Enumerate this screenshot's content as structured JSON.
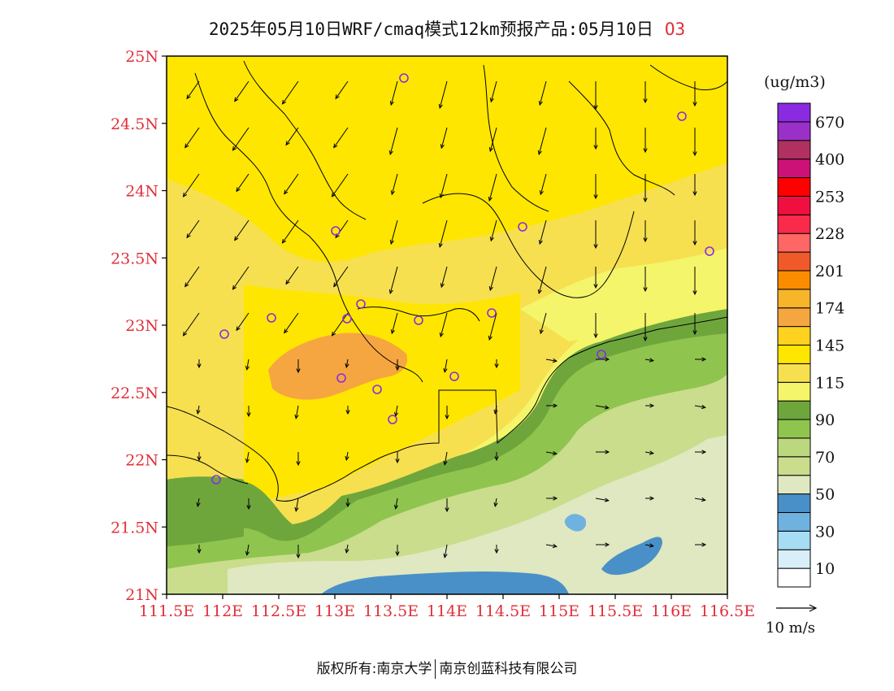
{
  "title": {
    "text": "2025年05月10日WRF/cmaq模式12km预报产品:05月10日",
    "pollutant": "O3"
  },
  "map": {
    "lat_labels": [
      "25N",
      "24.5N",
      "24N",
      "23.5N",
      "23N",
      "22.5N",
      "22N",
      "21.5N",
      "21N"
    ],
    "lon_labels": [
      "111.5E",
      "112E",
      "112.5E",
      "113E",
      "113.5E",
      "114E",
      "114.5E",
      "115E",
      "115.5E",
      "116E",
      "116.5E"
    ],
    "lat_range": [
      21,
      25
    ],
    "lon_range": [
      111.5,
      116.5
    ],
    "axis_label_color": "#e0303a"
  },
  "legend": {
    "unit": "(ug/m3)",
    "colors": [
      "#ffffff",
      "#d8eef8",
      "#a6dcf4",
      "#6fb2e0",
      "#4a90c8",
      "#dfe8c0",
      "#c9dd8c",
      "#bcd87e",
      "#8fc44e",
      "#6ea63c",
      "#f4f56a",
      "#f6e050",
      "#ffe600",
      "#ffd21f",
      "#f6a640",
      "#f7b52a",
      "#fb8c00",
      "#f05a2a",
      "#ff6666",
      "#fa2a4a",
      "#f01040",
      "#ff0000",
      "#cc1177",
      "#b03060",
      "#9a30c8",
      "#8a2be2"
    ],
    "tick_labels": [
      "10",
      "30",
      "50",
      "70",
      "90",
      "115",
      "145",
      "174",
      "201",
      "228",
      "253",
      "400",
      "670"
    ]
  },
  "wind": {
    "reference_label": "10 m/s"
  },
  "footer": {
    "left": "版权所有:南京大学",
    "right": "南京创蓝科技有限公司"
  }
}
